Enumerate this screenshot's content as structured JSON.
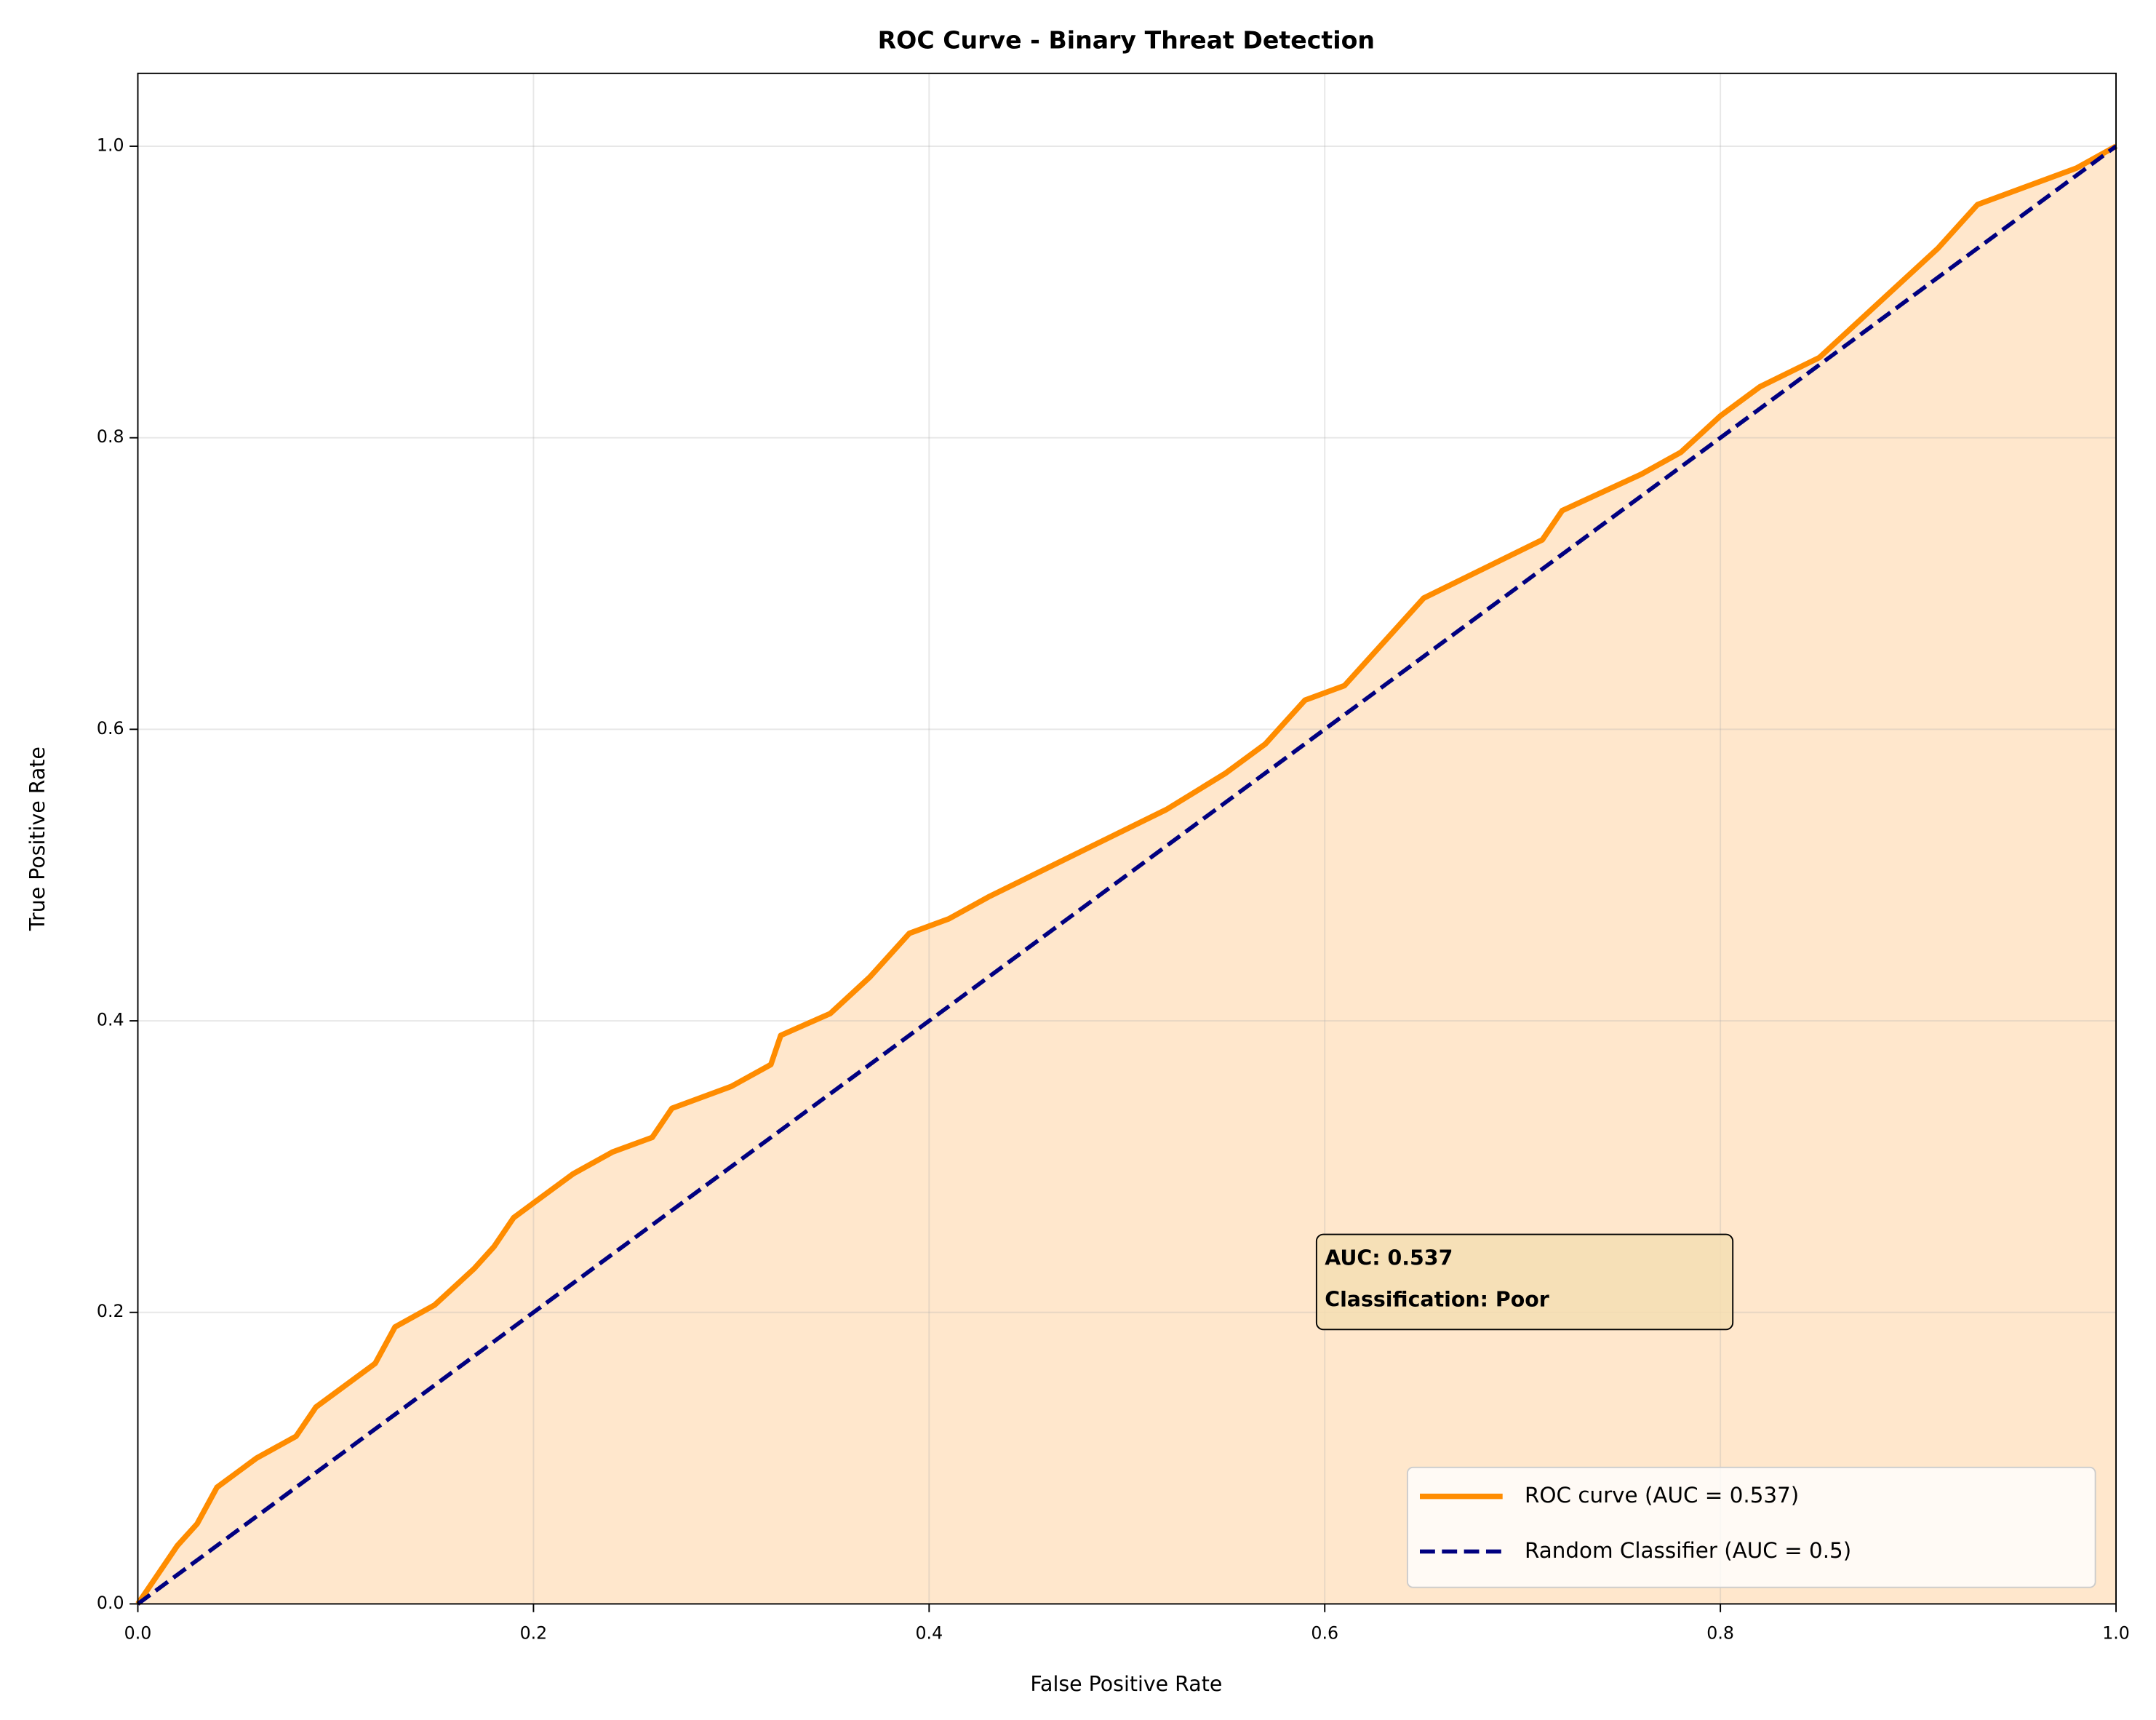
{
  "chart_data": {
    "type": "line",
    "title": "ROC Curve - Binary Threat Detection",
    "xlabel": "False Positive Rate",
    "ylabel": "True Positive Rate",
    "xlim": [
      0,
      1
    ],
    "ylim": [
      0,
      1.05
    ],
    "xticks": [
      {
        "value": 0,
        "label": "0.0"
      },
      0.2,
      0.4,
      0.6,
      0.8,
      {
        "value": 1,
        "label": "1.0"
      }
    ],
    "yticks": [
      {
        "value": 0,
        "label": "0.0"
      },
      0.2,
      0.4,
      0.6,
      0.8,
      {
        "value": 1,
        "label": "1.0"
      }
    ],
    "grid": true,
    "legend": "lower right",
    "fill_color": "#ffe7cc",
    "series": [
      {
        "name": "ROC curve (AUC = 0.537)",
        "color": "#ff8c00",
        "x": [
          0,
          0.01,
          0.02,
          0.03,
          0.04,
          0.05,
          0.06,
          0.08,
          0.09,
          0.1,
          0.12,
          0.13,
          0.15,
          0.17,
          0.18,
          0.19,
          0.2,
          0.22,
          0.24,
          0.26,
          0.27,
          0.3,
          0.32,
          0.325,
          0.35,
          0.37,
          0.39,
          0.41,
          0.43,
          0.46,
          0.49,
          0.52,
          0.55,
          0.57,
          0.59,
          0.61,
          0.63,
          0.65,
          0.68,
          0.71,
          0.72,
          0.76,
          0.78,
          0.8,
          0.82,
          0.85,
          0.87,
          0.89,
          0.91,
          0.93,
          0.96,
          0.98,
          1.0
        ],
        "values": [
          0,
          0.02,
          0.04,
          0.055,
          0.08,
          0.09,
          0.1,
          0.115,
          0.135,
          0.145,
          0.165,
          0.19,
          0.205,
          0.23,
          0.245,
          0.265,
          0.275,
          0.295,
          0.31,
          0.32,
          0.34,
          0.355,
          0.37,
          0.39,
          0.405,
          0.43,
          0.46,
          0.47,
          0.485,
          0.505,
          0.525,
          0.545,
          0.57,
          0.59,
          0.62,
          0.63,
          0.66,
          0.69,
          0.71,
          0.73,
          0.75,
          0.775,
          0.79,
          0.815,
          0.835,
          0.855,
          0.88,
          0.905,
          0.93,
          0.96,
          0.975,
          0.985,
          1.0
        ]
      },
      {
        "name": "Random Classifier (AUC = 0.5)",
        "color": "#000080",
        "dashed": true,
        "x": [
          0,
          1
        ],
        "values": [
          0,
          1
        ]
      }
    ],
    "annotation": [
      "AUC: 0.537",
      "Classification: Poor"
    ]
  }
}
